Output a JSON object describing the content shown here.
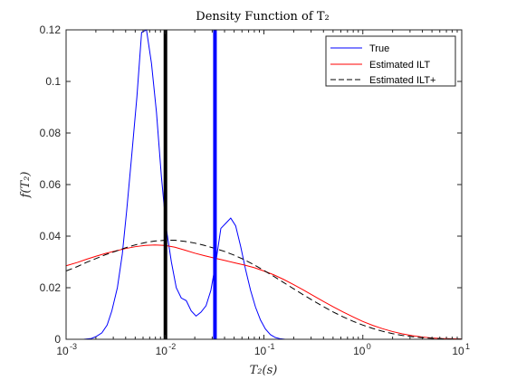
{
  "chart_data": {
    "type": "line",
    "title": "Density Function of T₂",
    "xlabel": "T₂(s)",
    "ylabel": "f(T₂)",
    "xscale": "log",
    "xlim": [
      0.001,
      10
    ],
    "ylim": [
      0,
      0.12
    ],
    "x_ticks": [
      0.001,
      0.01,
      0.1,
      1,
      10
    ],
    "x_tick_labels": [
      {
        "base": "10",
        "exp": "-3"
      },
      {
        "base": "10",
        "exp": "-2"
      },
      {
        "base": "10",
        "exp": "-1"
      },
      {
        "base": "10",
        "exp": "0"
      },
      {
        "base": "10",
        "exp": "1"
      }
    ],
    "y_ticks": [
      0,
      0.02,
      0.04,
      0.06,
      0.08,
      0.1,
      0.12
    ],
    "y_tick_labels": [
      "0",
      "0.02",
      "0.04",
      "0.06",
      "0.08",
      "0.1",
      "0.12"
    ],
    "grid": false,
    "legend_position": "top-right",
    "series": [
      {
        "name": "True",
        "color": "#0000ff",
        "style": "solid",
        "x": [
          0.001,
          0.0015,
          0.0018,
          0.002,
          0.0023,
          0.0026,
          0.0029,
          0.0033,
          0.0037,
          0.0041,
          0.0046,
          0.0052,
          0.0058,
          0.0065,
          0.0073,
          0.0082,
          0.0092,
          0.0103,
          0.0116,
          0.013,
          0.0146,
          0.0164,
          0.0184,
          0.0206,
          0.0231,
          0.026,
          0.0291,
          0.0327,
          0.0367,
          0.0412,
          0.0462,
          0.0518,
          0.0582,
          0.0653,
          0.0733,
          0.0822,
          0.0923,
          0.1035,
          0.1162,
          0.1304,
          0.1464,
          0.1643,
          0.2,
          0.3,
          1,
          10
        ],
        "y": [
          0,
          0,
          0.0003,
          0.001,
          0.0025,
          0.0055,
          0.011,
          0.02,
          0.033,
          0.05,
          0.071,
          0.094,
          0.119,
          0.12,
          0.107,
          0.088,
          0.063,
          0.043,
          0.03,
          0.02,
          0.016,
          0.015,
          0.011,
          0.009,
          0.0105,
          0.013,
          0.019,
          0.03,
          0.043,
          0.045,
          0.047,
          0.044,
          0.036,
          0.027,
          0.019,
          0.0125,
          0.0075,
          0.004,
          0.0018,
          0.0007,
          0.0002,
          0,
          0,
          0,
          0,
          0
        ]
      },
      {
        "name": "Estimated ILT",
        "color": "#ff0000",
        "style": "solid",
        "x": [
          0.001,
          0.0013,
          0.0016,
          0.002,
          0.0025,
          0.0032,
          0.004,
          0.005,
          0.0063,
          0.0079,
          0.01,
          0.0126,
          0.0158,
          0.02,
          0.0251,
          0.0316,
          0.0398,
          0.0501,
          0.0631,
          0.0794,
          0.1,
          0.1259,
          0.1585,
          0.1995,
          0.2512,
          0.3162,
          0.3981,
          0.5012,
          0.631,
          0.7943,
          1,
          1.2589,
          1.5849,
          1.9953,
          2.5119,
          3.1623,
          3.9811,
          5.0119,
          6.3096,
          7.9433,
          10
        ],
        "y": [
          0.0285,
          0.0298,
          0.031,
          0.0322,
          0.0333,
          0.0343,
          0.0352,
          0.0359,
          0.0364,
          0.0366,
          0.0364,
          0.0357,
          0.0346,
          0.0334,
          0.0324,
          0.0315,
          0.0306,
          0.0297,
          0.0288,
          0.0278,
          0.0265,
          0.025,
          0.0232,
          0.0212,
          0.0191,
          0.0169,
          0.0147,
          0.0126,
          0.0106,
          0.0087,
          0.0069,
          0.0054,
          0.0041,
          0.003,
          0.0021,
          0.0014,
          0.0009,
          0.0005,
          0.0003,
          0.0002,
          0.0001
        ]
      },
      {
        "name": "Estimated ILT+",
        "color": "#000000",
        "style": "dashed",
        "x": [
          0.001,
          0.0013,
          0.0016,
          0.002,
          0.0025,
          0.0032,
          0.004,
          0.005,
          0.0063,
          0.0079,
          0.01,
          0.0126,
          0.0158,
          0.02,
          0.0251,
          0.0316,
          0.0398,
          0.0501,
          0.0631,
          0.0794,
          0.1,
          0.1259,
          0.1585,
          0.1995,
          0.2512,
          0.3162,
          0.3981,
          0.5012,
          0.631,
          0.7943,
          1,
          1.2589,
          1.5849,
          1.9953,
          2.5119,
          3.1623,
          3.9811,
          5.0119,
          6.3096,
          7.9433,
          10
        ],
        "y": [
          0.0265,
          0.0282,
          0.0298,
          0.0313,
          0.0328,
          0.0342,
          0.0355,
          0.0366,
          0.0375,
          0.0381,
          0.0384,
          0.0384,
          0.038,
          0.0373,
          0.0364,
          0.0353,
          0.0341,
          0.0326,
          0.0309,
          0.0289,
          0.0267,
          0.0244,
          0.022,
          0.0196,
          0.0172,
          0.0149,
          0.0127,
          0.0106,
          0.0087,
          0.007,
          0.0055,
          0.0042,
          0.0031,
          0.0022,
          0.0015,
          0.001,
          0.0006,
          0.0004,
          0.0002,
          0.0001,
          0.0001
        ]
      }
    ],
    "vertical_lines": [
      {
        "x": 0.0101,
        "color": "#000000"
      },
      {
        "x": 0.032,
        "color": "#0000ff"
      }
    ]
  }
}
